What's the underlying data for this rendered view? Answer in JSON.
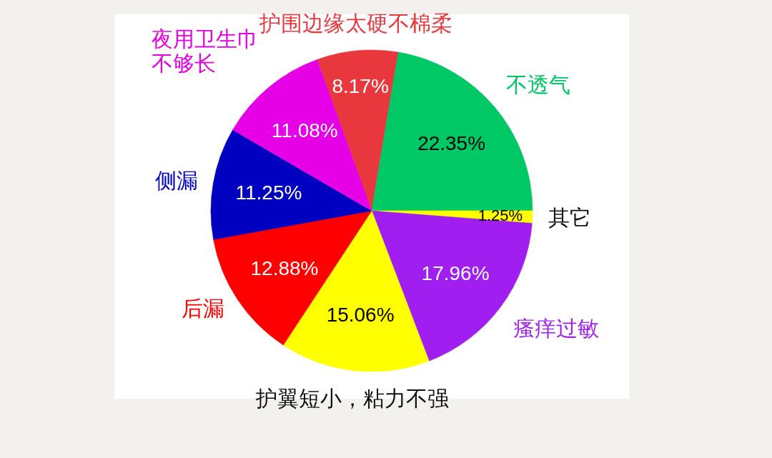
{
  "chart_data": {
    "type": "pie",
    "categories": [
      "护围边缘太硬不棉柔",
      "不透气",
      "其它",
      "瘙痒过敏",
      "护翼短小，粘力不强",
      "后漏",
      "侧漏",
      "夜用卫生巾不够长"
    ],
    "values": [
      8.17,
      22.35,
      1.25,
      17.96,
      15.06,
      12.88,
      11.25,
      11.08
    ],
    "colors": [
      "#e8383d",
      "#00c864",
      "#ffff00",
      "#a01ef0",
      "#ffff00",
      "#ff0000",
      "#0000c0",
      "#e600e6"
    ],
    "value_labels": [
      "8.17%",
      "22.35%",
      "1.25%",
      "17.96%",
      "15.06%",
      "12.88%",
      "11.25%",
      "11.08%"
    ]
  }
}
